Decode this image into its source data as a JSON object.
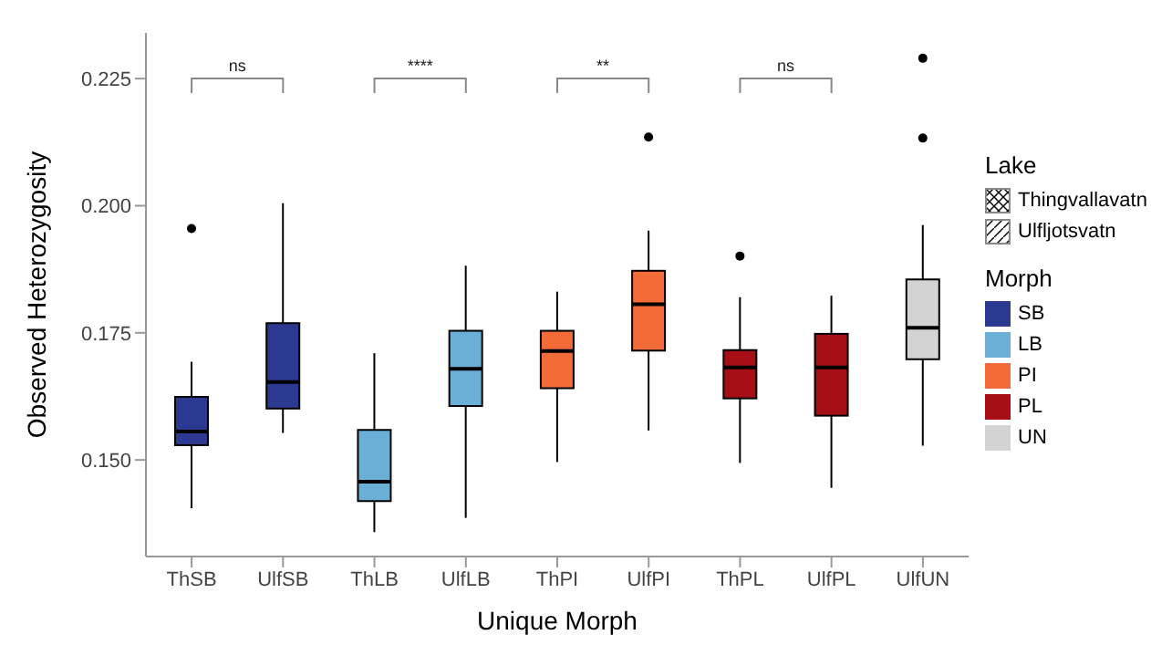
{
  "chart_data": {
    "type": "box",
    "xlabel": "Unique Morph",
    "ylabel": "Observed Heterozygosity",
    "legend_title": "Morph",
    "legend": "right",
    "grid": false,
    "categories": [
      "ThSB",
      "UlfSB",
      "ThLB",
      "UlfLB",
      "ThPI",
      "UlfPI",
      "ThPL",
      "UlfPL",
      "UlfUN"
    ],
    "ylim": [
      0.131,
      0.234
    ],
    "yticks": [
      {
        "value": 0.15,
        "label": "0.150"
      },
      0.175,
      {
        "value": 0.2,
        "label": "0.200"
      },
      0.225
    ],
    "annotations": [
      "ns",
      "****",
      "**",
      "ns",
      "Lake",
      "Thingvallavatn",
      "Ulfljotsvatn"
    ],
    "series": [
      {
        "name": "SB",
        "color": "#2b3990",
        "boxes": [
          {
            "low": 0.1405,
            "q1": 0.1529,
            "median": 0.1556,
            "q3": 0.1624,
            "high": 0.1693,
            "outliers": [
              0.1955
            ]
          },
          {
            "low": 0.1553,
            "q1": 0.1601,
            "median": 0.1653,
            "q3": 0.1769,
            "high": 0.2005
          },
          null,
          null,
          null,
          null,
          null,
          null,
          null
        ]
      },
      {
        "name": "LB",
        "color": "#6baed6",
        "boxes": [
          null,
          null,
          {
            "low": 0.1358,
            "q1": 0.1419,
            "median": 0.1457,
            "q3": 0.1559,
            "high": 0.171
          },
          {
            "low": 0.1386,
            "q1": 0.1606,
            "median": 0.1679,
            "q3": 0.1754,
            "high": 0.1882
          },
          null,
          null,
          null,
          null,
          null
        ]
      },
      {
        "name": "PI",
        "color": "#f26b38",
        "boxes": [
          null,
          null,
          null,
          null,
          {
            "low": 0.1496,
            "q1": 0.1641,
            "median": 0.1714,
            "q3": 0.1754,
            "high": 0.1831
          },
          {
            "low": 0.1558,
            "q1": 0.1715,
            "median": 0.1806,
            "q3": 0.1872,
            "high": 0.1951,
            "outliers": [
              0.2135
            ]
          },
          null,
          null,
          null
        ]
      },
      {
        "name": "PL",
        "color": "#a50f15",
        "boxes": [
          null,
          null,
          null,
          null,
          null,
          null,
          {
            "low": 0.1494,
            "q1": 0.1621,
            "median": 0.1682,
            "q3": 0.1716,
            "high": 0.182,
            "outliers": [
              0.1901
            ]
          },
          {
            "low": 0.1445,
            "q1": 0.1587,
            "median": 0.1682,
            "q3": 0.1748,
            "high": 0.1823
          },
          null
        ]
      },
      {
        "name": "UN",
        "color": "#d3d3d3",
        "boxes": [
          null,
          null,
          null,
          null,
          null,
          null,
          null,
          null,
          {
            "low": 0.1528,
            "q1": 0.1698,
            "median": 0.176,
            "q3": 0.1855,
            "high": 0.1962,
            "outliers": [
              0.229,
              0.2133
            ]
          }
        ]
      }
    ]
  }
}
